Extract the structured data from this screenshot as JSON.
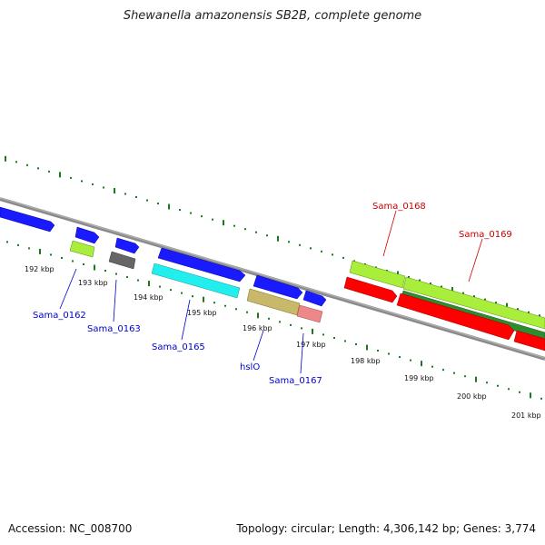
{
  "title": "Shewanella amazonensis SB2B, complete genome",
  "footer": {
    "accession": "Accession: NC_008700",
    "summary": "Topology: circular; Length: 4,306,142 bp; Genes: 3,774"
  },
  "colors": {
    "backbone": "#8a8a8a",
    "tick": "#1a7a1a",
    "forward_cds": "#1a1aff",
    "reverse_cds": "#ff0000",
    "lime": "#a8ee3a",
    "darkgreen": "#2e8b2e",
    "cyan": "#22eeee",
    "khaki": "#c8b86a",
    "pink": "#ee8888",
    "gray": "#666666",
    "label_blue": "#0000cc",
    "label_red": "#cc0000"
  },
  "ticks": [
    "192 kbp",
    "193 kbp",
    "194 kbp",
    "195 kbp",
    "196 kbp",
    "197 kbp",
    "198 kbp",
    "199 kbp",
    "200 kbp",
    "201 kbp"
  ],
  "gene_labels": [
    {
      "text": "Sama_0162",
      "color": "blue"
    },
    {
      "text": "Sama_0163",
      "color": "blue"
    },
    {
      "text": "Sama_0165",
      "color": "blue"
    },
    {
      "text": "hslO",
      "color": "blue"
    },
    {
      "text": "Sama_0167",
      "color": "blue"
    },
    {
      "text": "Sama_0168",
      "color": "red"
    },
    {
      "text": "Sama_0169",
      "color": "red"
    }
  ]
}
